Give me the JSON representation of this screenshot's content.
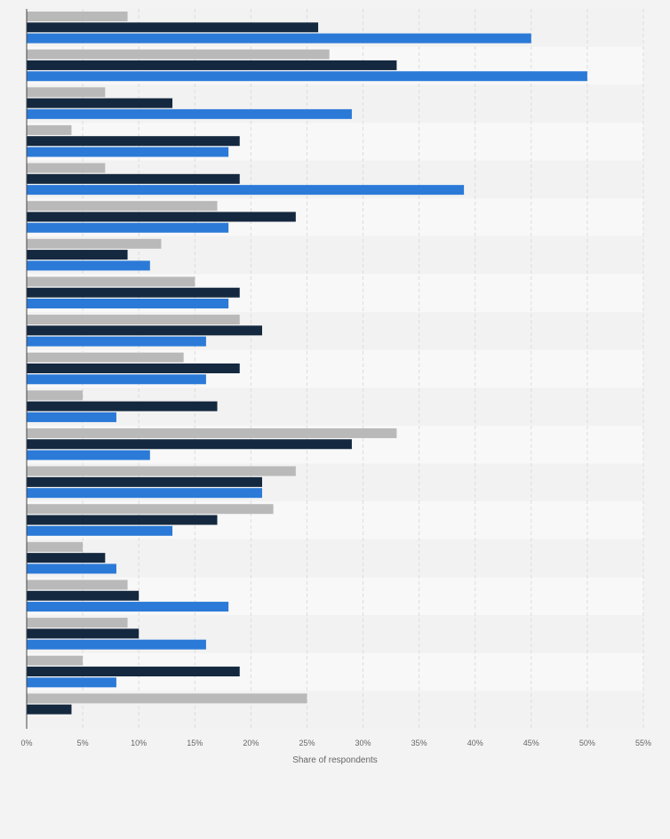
{
  "chart_data": {
    "type": "bar",
    "orientation": "horizontal",
    "categories": [
      "",
      "",
      "",
      "",
      "",
      "",
      "",
      "",
      "",
      "",
      "",
      "",
      "",
      "",
      "",
      "",
      "",
      "",
      ""
    ],
    "series": [
      {
        "color": "#b9b9b9",
        "values": [
          9,
          27,
          7,
          4,
          7,
          17,
          12,
          15,
          19,
          14,
          5,
          33,
          24,
          22,
          5,
          9,
          9,
          5,
          25
        ]
      },
      {
        "color": "#14283f",
        "values": [
          26,
          33,
          13,
          19,
          19,
          24,
          9,
          19,
          21,
          19,
          17,
          29,
          21,
          17,
          7,
          10,
          10,
          19,
          4
        ]
      },
      {
        "color": "#2b7ad8",
        "values": [
          45,
          50,
          29,
          18,
          39,
          18,
          11,
          18,
          16,
          16,
          8,
          11,
          21,
          13,
          8,
          18,
          16,
          8,
          null
        ]
      }
    ],
    "xlabel": "Share of respondents",
    "ylabel": "",
    "xlim": [
      0,
      55
    ],
    "xticks": [
      "0%",
      "5%",
      "10%",
      "15%",
      "20%",
      "25%",
      "30%",
      "35%",
      "40%",
      "45%",
      "50%",
      "55%"
    ],
    "grid": "vertical-dashed",
    "legend": "none"
  }
}
